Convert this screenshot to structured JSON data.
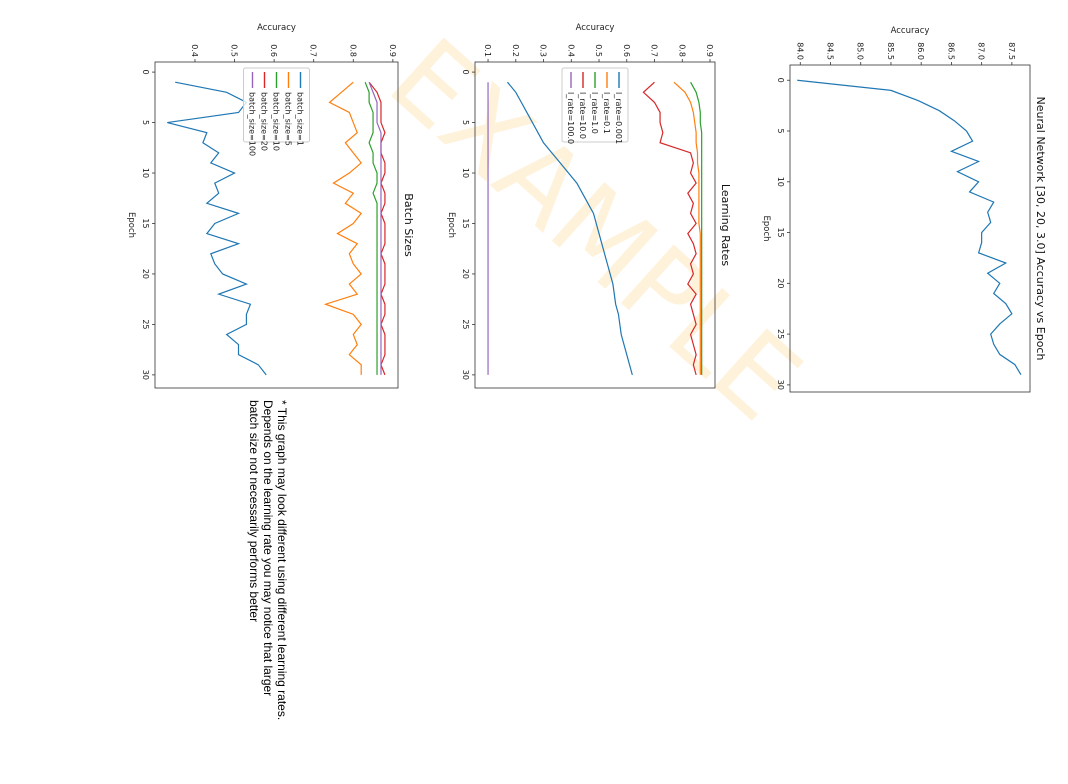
{
  "chart_data": [
    {
      "type": "line",
      "title": "Neural Network [30, 20, 3.0] Accuracy vs Epoch",
      "xlabel": "Epoch",
      "ylabel": "Accuracy",
      "x": [
        0,
        1,
        2,
        3,
        4,
        5,
        6,
        7,
        8,
        9,
        10,
        11,
        12,
        13,
        14,
        15,
        16,
        17,
        18,
        19,
        20,
        21,
        22,
        23,
        24,
        25,
        26,
        27,
        28,
        29
      ],
      "values": [
        83.95,
        85.5,
        85.95,
        86.3,
        86.55,
        86.75,
        86.85,
        86.5,
        86.95,
        86.6,
        86.95,
        86.8,
        87.2,
        87.1,
        87.15,
        87.0,
        87.0,
        86.95,
        87.4,
        87.1,
        87.3,
        87.2,
        87.4,
        87.5,
        87.3,
        87.15,
        87.2,
        87.3,
        87.55,
        87.65
      ],
      "color": "#1f77b4",
      "xlim": [
        -1.5,
        30.7
      ],
      "ylim": [
        83.83,
        87.8
      ],
      "xticks": [
        0,
        5,
        10,
        15,
        20,
        25,
        30
      ],
      "yticks": [
        {
          "value": 84,
          "label": "84.0"
        },
        84.5,
        {
          "value": 85,
          "label": "85.0"
        },
        85.5,
        {
          "value": 86,
          "label": "86.0"
        },
        86.5,
        {
          "value": 87,
          "label": "87.0"
        },
        87.5
      ]
    },
    {
      "type": "line",
      "title": "Learning Rates",
      "xlabel": "Epoch",
      "ylabel": "Accuracy",
      "x": [
        1,
        2,
        3,
        4,
        5,
        6,
        7,
        8,
        9,
        10,
        11,
        12,
        13,
        14,
        15,
        16,
        17,
        18,
        19,
        20,
        21,
        22,
        23,
        24,
        25,
        26,
        27,
        28,
        29,
        30
      ],
      "series": [
        {
          "name": "l_rate=0.001",
          "color": "#1f77b4",
          "values": [
            0.17,
            0.2,
            0.22,
            0.24,
            0.26,
            0.28,
            0.3,
            0.33,
            0.36,
            0.39,
            0.42,
            0.44,
            0.46,
            0.48,
            0.49,
            0.5,
            0.51,
            0.52,
            0.53,
            0.54,
            0.55,
            0.555,
            0.56,
            0.57,
            0.575,
            0.58,
            0.59,
            0.6,
            0.61,
            0.62
          ]
        },
        {
          "name": "l_rate=0.1",
          "color": "#ff7f0e",
          "values": [
            0.77,
            0.81,
            0.83,
            0.84,
            0.845,
            0.85,
            0.85,
            0.855,
            0.855,
            0.86,
            0.86,
            0.86,
            0.86,
            0.86,
            0.86,
            0.865,
            0.865,
            0.865,
            0.865,
            0.865,
            0.865,
            0.865,
            0.865,
            0.865,
            0.865,
            0.865,
            0.865,
            0.865,
            0.865,
            0.865
          ]
        },
        {
          "name": "l_rate=1.0",
          "color": "#2ca02c",
          "values": [
            0.83,
            0.85,
            0.86,
            0.865,
            0.865,
            0.87,
            0.87,
            0.87,
            0.87,
            0.87,
            0.87,
            0.87,
            0.87,
            0.87,
            0.87,
            0.87,
            0.87,
            0.87,
            0.87,
            0.87,
            0.87,
            0.87,
            0.87,
            0.87,
            0.87,
            0.87,
            0.87,
            0.87,
            0.87,
            0.87
          ]
        },
        {
          "name": "l_rate=10.0",
          "color": "#d62728",
          "values": [
            0.7,
            0.66,
            0.7,
            0.72,
            0.72,
            0.73,
            0.72,
            0.83,
            0.84,
            0.83,
            0.85,
            0.82,
            0.84,
            0.83,
            0.85,
            0.82,
            0.84,
            0.85,
            0.83,
            0.84,
            0.82,
            0.85,
            0.83,
            0.84,
            0.85,
            0.83,
            0.84,
            0.85,
            0.84,
            0.85
          ]
        },
        {
          "name": "l_rate=100.0",
          "color": "#9467bd",
          "values": [
            0.1,
            0.1,
            0.1,
            0.1,
            0.1,
            0.1,
            0.1,
            0.1,
            0.1,
            0.1,
            0.1,
            0.1,
            0.1,
            0.1,
            0.1,
            0.1,
            0.1,
            0.1,
            0.1,
            0.1,
            0.1,
            0.1,
            0.1,
            0.1,
            0.1,
            0.1,
            0.1,
            0.1,
            0.1,
            0.1
          ]
        }
      ],
      "legend": "center left",
      "xlim": [
        -1,
        31.3
      ],
      "ylim": [
        0.053,
        0.918
      ],
      "xticks": [
        0,
        5,
        10,
        15,
        20,
        25,
        30
      ],
      "yticks": [
        0.1,
        0.2,
        0.3,
        0.4,
        0.5,
        0.6,
        0.7,
        0.8,
        0.9
      ]
    },
    {
      "type": "line",
      "title": "Batch Sizes",
      "xlabel": "Epoch",
      "ylabel": "Accuracy",
      "x": [
        1,
        2,
        3,
        4,
        5,
        6,
        7,
        8,
        9,
        10,
        11,
        12,
        13,
        14,
        15,
        16,
        17,
        18,
        19,
        20,
        21,
        22,
        23,
        24,
        25,
        26,
        27,
        28,
        29,
        30
      ],
      "series": [
        {
          "name": "batch_size=1",
          "color": "#1f77b4",
          "values": [
            0.35,
            0.48,
            0.53,
            0.51,
            0.33,
            0.43,
            0.42,
            0.46,
            0.44,
            0.5,
            0.45,
            0.46,
            0.43,
            0.51,
            0.45,
            0.43,
            0.51,
            0.44,
            0.45,
            0.47,
            0.53,
            0.46,
            0.54,
            0.53,
            0.53,
            0.48,
            0.51,
            0.51,
            0.56,
            0.58
          ]
        },
        {
          "name": "batch_size=5",
          "color": "#ff7f0e",
          "values": [
            0.8,
            0.77,
            0.74,
            0.79,
            0.8,
            0.81,
            0.78,
            0.8,
            0.82,
            0.79,
            0.75,
            0.8,
            0.78,
            0.82,
            0.8,
            0.76,
            0.81,
            0.79,
            0.8,
            0.82,
            0.79,
            0.81,
            0.73,
            0.8,
            0.82,
            0.8,
            0.81,
            0.79,
            0.82,
            0.82
          ]
        },
        {
          "name": "batch_size=10",
          "color": "#2ca02c",
          "values": [
            0.83,
            0.84,
            0.84,
            0.85,
            0.85,
            0.85,
            0.84,
            0.85,
            0.85,
            0.86,
            0.86,
            0.85,
            0.86,
            0.86,
            0.86,
            0.86,
            0.86,
            0.86,
            0.86,
            0.86,
            0.86,
            0.86,
            0.86,
            0.86,
            0.86,
            0.86,
            0.86,
            0.86,
            0.86,
            0.86
          ]
        },
        {
          "name": "batch_size=20",
          "color": "#d62728",
          "values": [
            0.84,
            0.86,
            0.87,
            0.87,
            0.87,
            0.88,
            0.87,
            0.87,
            0.88,
            0.88,
            0.87,
            0.88,
            0.88,
            0.87,
            0.88,
            0.88,
            0.88,
            0.87,
            0.88,
            0.88,
            0.88,
            0.87,
            0.88,
            0.88,
            0.87,
            0.88,
            0.88,
            0.88,
            0.87,
            0.88
          ]
        },
        {
          "name": "batch_size=100",
          "color": "#9467bd",
          "values": [
            0.84,
            0.85,
            0.86,
            0.86,
            0.86,
            0.87,
            0.87,
            0.87,
            0.87,
            0.87,
            0.87,
            0.87,
            0.87,
            0.87,
            0.87,
            0.87,
            0.87,
            0.87,
            0.87,
            0.87,
            0.87,
            0.87,
            0.87,
            0.87,
            0.87,
            0.87,
            0.87,
            0.87,
            0.87,
            0.87
          ]
        }
      ],
      "legend": "center left",
      "xlim": [
        -1,
        31.3
      ],
      "ylim": [
        0.299,
        0.913
      ],
      "xticks": [
        0,
        5,
        10,
        15,
        20,
        25,
        30
      ],
      "yticks": [
        0.4,
        0.5,
        0.6,
        0.7,
        0.8,
        0.9
      ]
    }
  ],
  "footnote": [
    "* This graph may look different using different learning rates.",
    "Depends on the learning rate you may notice that larger",
    "batch size not necessarily performs better"
  ],
  "watermark": "EXAMPLE"
}
